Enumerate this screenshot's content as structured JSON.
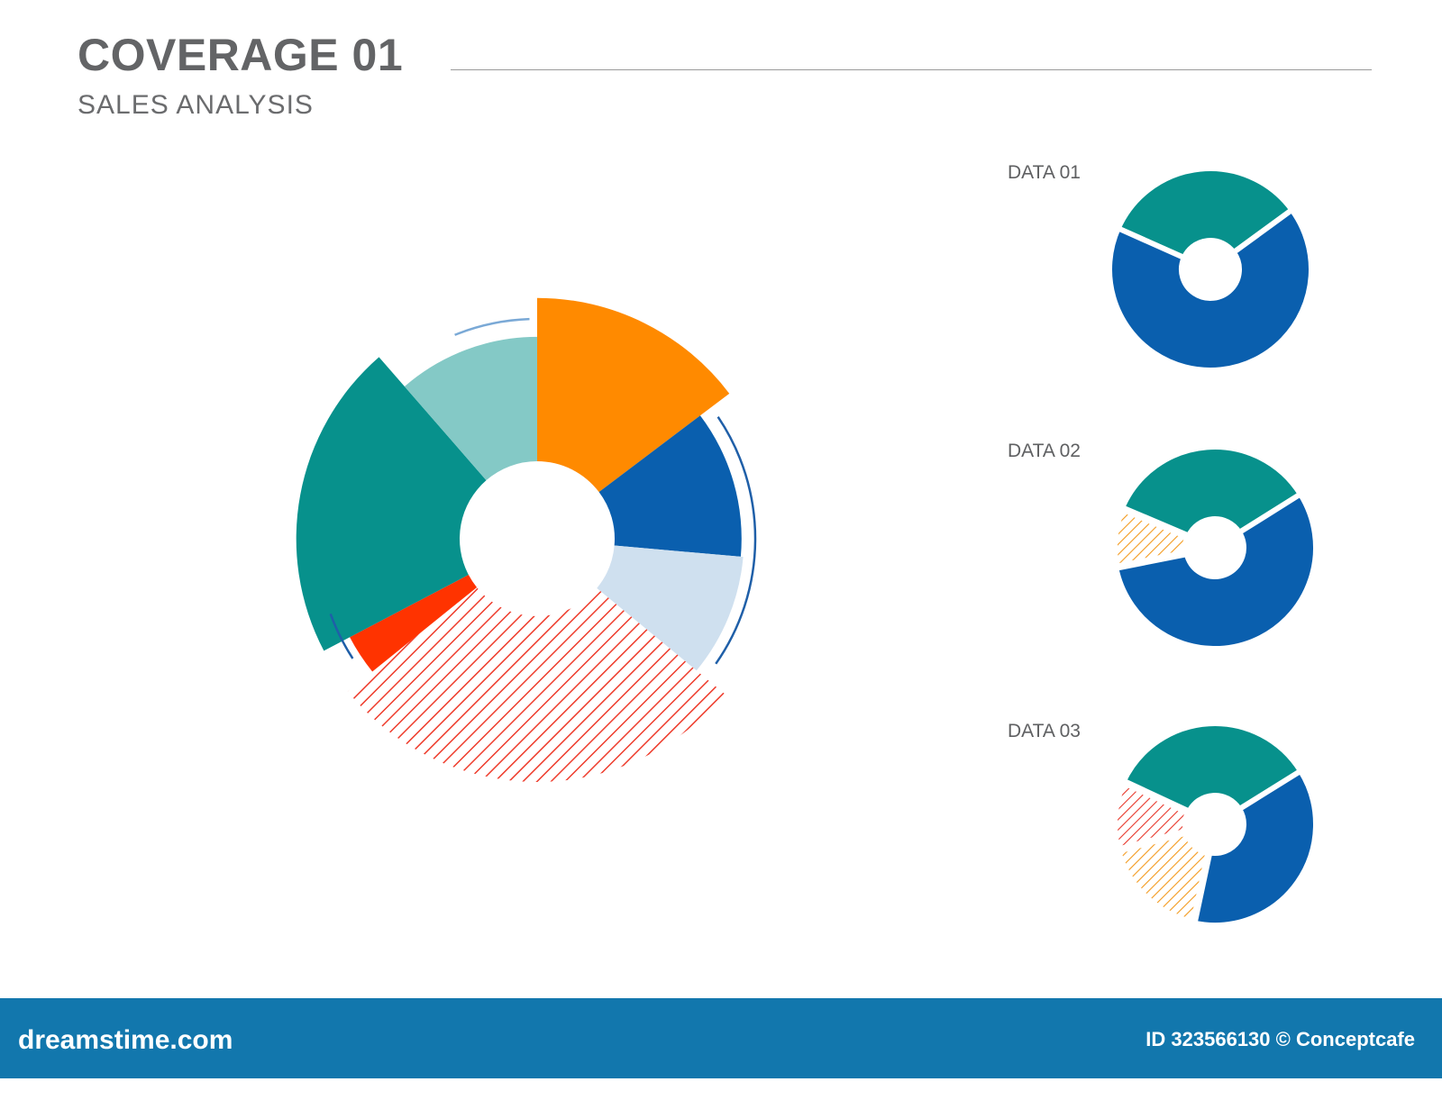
{
  "header": {
    "title": "COVERAGE 01",
    "subtitle": "SALES ANALYSIS"
  },
  "colors": {
    "orange": "#ff8a00",
    "dark_blue": "#0a5fae",
    "teal": "#07918c",
    "light_teal": "#84c9c6",
    "light_blue": "#cfe0ef",
    "red": "#ff3300",
    "hatch_red": "#ee3b2b",
    "hatch_orange": "#f39a1e",
    "footer": "#1277ad"
  },
  "chart_data": [
    {
      "type": "pie",
      "variant": "polar-area donut",
      "title": "",
      "segments": [
        {
          "color": "orange",
          "fill": "solid",
          "share": 14.7,
          "radius": 99
        },
        {
          "color": "dark_blue",
          "fill": "solid",
          "share": 11.7,
          "radius": 84
        },
        {
          "color": "light_blue",
          "fill": "solid",
          "share": 9.6,
          "radius": 85
        },
        {
          "color": "hatch_red",
          "fill": "hatched",
          "share": 28.2,
          "radius": 100
        },
        {
          "color": "red",
          "fill": "solid",
          "share": 3.1,
          "radius": 87
        },
        {
          "color": "teal",
          "fill": "solid",
          "share": 21.3,
          "radius": 99
        },
        {
          "color": "light_teal",
          "fill": "solid",
          "share": 11.4,
          "radius": 83
        }
      ]
    },
    {
      "type": "pie",
      "variant": "donut",
      "label": "DATA 01",
      "start_angle_deg": 294,
      "segments": [
        {
          "color": "teal",
          "fill": "solid",
          "share": 33.3
        },
        {
          "color": "dark_blue",
          "fill": "solid",
          "share": 66.7
        }
      ]
    },
    {
      "type": "pie",
      "variant": "donut",
      "label": "DATA 02",
      "start_angle_deg": 293,
      "segments": [
        {
          "color": "teal",
          "fill": "solid",
          "share": 34.7
        },
        {
          "color": "dark_blue",
          "fill": "solid",
          "share": 55.8
        },
        {
          "color": "hatch_orange",
          "fill": "hatched",
          "share": 9.5
        }
      ]
    },
    {
      "type": "pie",
      "variant": "donut",
      "label": "DATA 03",
      "start_angle_deg": 295,
      "segments": [
        {
          "color": "teal",
          "fill": "solid",
          "share": 34.2
        },
        {
          "color": "dark_blue",
          "fill": "solid",
          "share": 37.2
        },
        {
          "color": "hatch_orange",
          "fill": "hatched",
          "share": 17.5
        },
        {
          "color": "hatch_red",
          "fill": "hatched",
          "share": 11.1
        }
      ]
    }
  ],
  "footer": {
    "logo": "dreamstime.com",
    "credit": "ID 323566130 © Conceptcafe"
  }
}
